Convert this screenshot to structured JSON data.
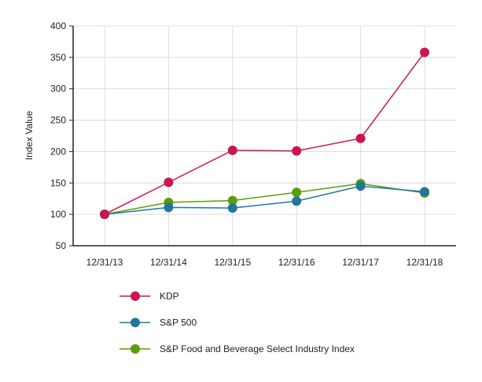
{
  "chart_data": {
    "type": "line",
    "title": "",
    "xlabel": "",
    "ylabel": "Index Value",
    "ylim": [
      50,
      400
    ],
    "yticks": [
      50,
      100,
      150,
      200,
      250,
      300,
      350,
      400
    ],
    "categories": [
      "12/31/13",
      "12/31/14",
      "12/31/15",
      "12/31/16",
      "12/31/17",
      "12/31/18"
    ],
    "grid": true,
    "legend_position": "bottom",
    "series": [
      {
        "name": "KDP",
        "color": "#cc1452",
        "values": [
          100,
          151,
          202,
          201,
          221,
          358
        ]
      },
      {
        "name": "S&P 500",
        "color": "#23759c",
        "values": [
          100,
          111,
          110,
          121,
          145,
          136
        ]
      },
      {
        "name": "S&P Food and Beverage Select Industry Index",
        "color": "#5a9e0a",
        "values": [
          100,
          119,
          122,
          135,
          149,
          134
        ]
      }
    ]
  }
}
